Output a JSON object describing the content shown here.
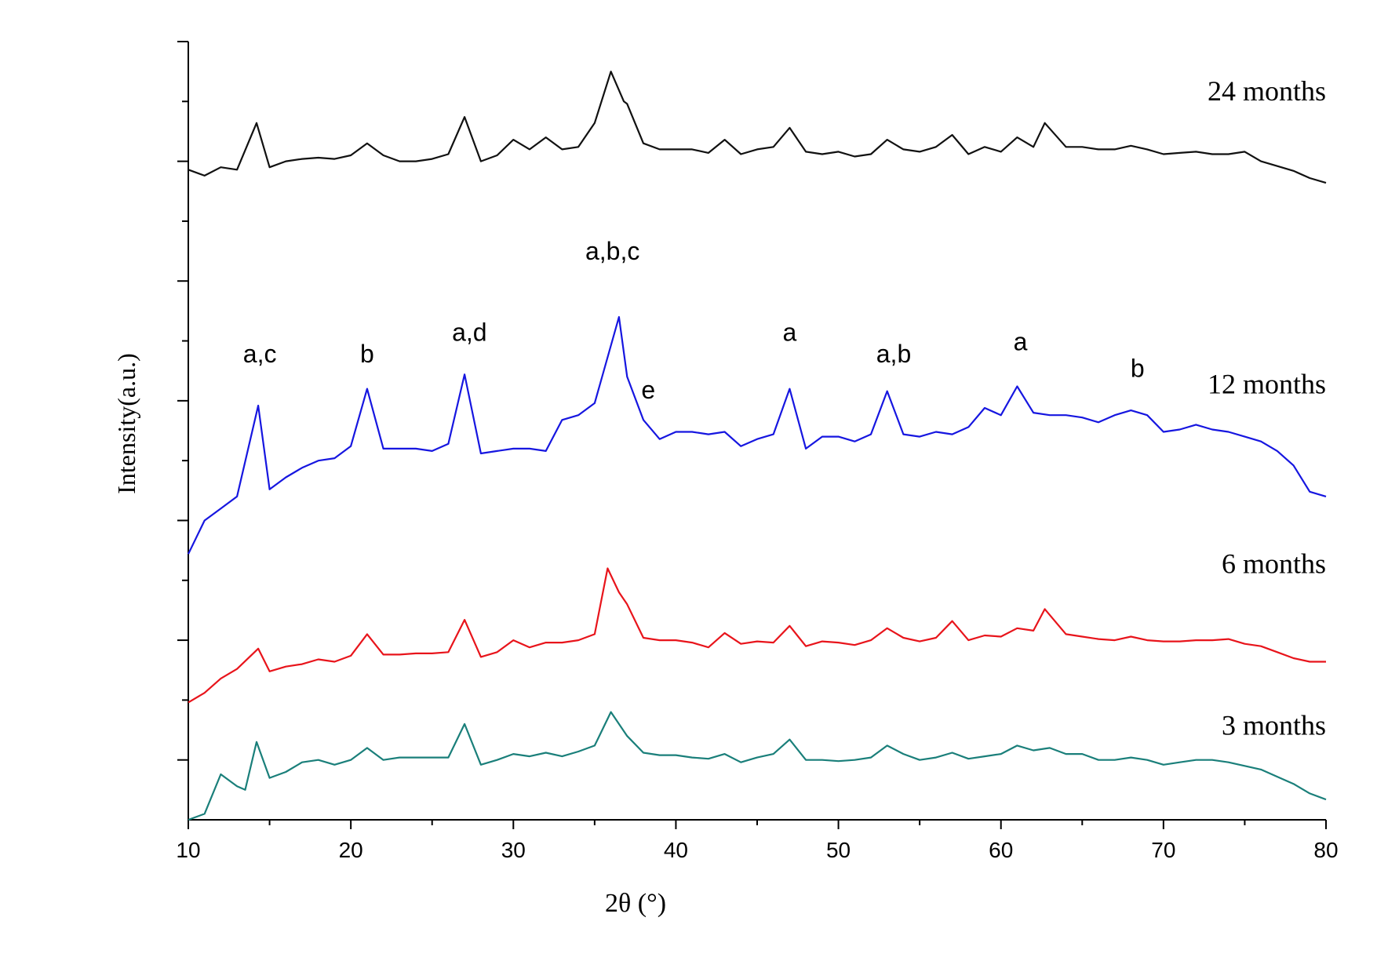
{
  "chart_data": {
    "type": "line",
    "title": "",
    "xlabel": "2θ (°)",
    "ylabel": "Intensity(a.u.)",
    "xlim": [
      10,
      80
    ],
    "x_ticks": [
      10,
      20,
      30,
      40,
      50,
      60,
      70,
      80
    ],
    "x_tick_labels": [
      "10",
      "20",
      "30",
      "40",
      "50",
      "60",
      "70",
      "80"
    ],
    "ylim": [
      0,
      6.5
    ],
    "y_ticks": [
      0.5,
      1.5,
      2.5,
      3.5,
      4.5,
      5.5,
      6.5
    ],
    "legend": "none",
    "grid": false,
    "series": [
      {
        "name": "3 months",
        "label": "3 months",
        "color": "#1a7f7a",
        "offset": 0.15,
        "points": [
          [
            10,
            0
          ],
          [
            11,
            0.05
          ],
          [
            12,
            0.38
          ],
          [
            13,
            0.28
          ],
          [
            13.5,
            0.25
          ],
          [
            14.2,
            0.65
          ],
          [
            15,
            0.35
          ],
          [
            16,
            0.4
          ],
          [
            17,
            0.48
          ],
          [
            18,
            0.5
          ],
          [
            19,
            0.46
          ],
          [
            20,
            0.5
          ],
          [
            21,
            0.6
          ],
          [
            22,
            0.5
          ],
          [
            23,
            0.52
          ],
          [
            24,
            0.52
          ],
          [
            25,
            0.52
          ],
          [
            26,
            0.52
          ],
          [
            27,
            0.8
          ],
          [
            28,
            0.46
          ],
          [
            29,
            0.5
          ],
          [
            30,
            0.55
          ],
          [
            31,
            0.53
          ],
          [
            32,
            0.56
          ],
          [
            33,
            0.53
          ],
          [
            34,
            0.57
          ],
          [
            35,
            0.62
          ],
          [
            36,
            0.9
          ],
          [
            37,
            0.7
          ],
          [
            38,
            0.56
          ],
          [
            39,
            0.54
          ],
          [
            40,
            0.54
          ],
          [
            41,
            0.52
          ],
          [
            42,
            0.51
          ],
          [
            43,
            0.55
          ],
          [
            44,
            0.48
          ],
          [
            45,
            0.52
          ],
          [
            46,
            0.55
          ],
          [
            47,
            0.67
          ],
          [
            48,
            0.5
          ],
          [
            49,
            0.5
          ],
          [
            50,
            0.49
          ],
          [
            51,
            0.5
          ],
          [
            52,
            0.52
          ],
          [
            53,
            0.62
          ],
          [
            54,
            0.55
          ],
          [
            55,
            0.5
          ],
          [
            56,
            0.52
          ],
          [
            57,
            0.56
          ],
          [
            58,
            0.51
          ],
          [
            59,
            0.53
          ],
          [
            60,
            0.55
          ],
          [
            61,
            0.62
          ],
          [
            62,
            0.58
          ],
          [
            63,
            0.6
          ],
          [
            64,
            0.55
          ],
          [
            65,
            0.55
          ],
          [
            66,
            0.5
          ],
          [
            67,
            0.5
          ],
          [
            68,
            0.52
          ],
          [
            69,
            0.5
          ],
          [
            70,
            0.46
          ],
          [
            71,
            0.48
          ],
          [
            72,
            0.5
          ],
          [
            73,
            0.5
          ],
          [
            74,
            0.48
          ],
          [
            75,
            0.45
          ],
          [
            76,
            0.42
          ],
          [
            77,
            0.36
          ],
          [
            78,
            0.3
          ],
          [
            79,
            0.22
          ],
          [
            80,
            0.17
          ]
        ]
      },
      {
        "name": "6 months",
        "label": "6 months",
        "color": "#e8141b",
        "offset": 1.5,
        "points": [
          [
            10,
            0.98
          ],
          [
            11,
            1.06
          ],
          [
            12,
            1.18
          ],
          [
            13,
            1.26
          ],
          [
            14.3,
            1.43
          ],
          [
            15,
            1.24
          ],
          [
            16,
            1.28
          ],
          [
            17,
            1.3
          ],
          [
            18,
            1.34
          ],
          [
            19,
            1.32
          ],
          [
            20,
            1.37
          ],
          [
            21,
            1.55
          ],
          [
            22,
            1.38
          ],
          [
            23,
            1.38
          ],
          [
            24,
            1.39
          ],
          [
            25,
            1.39
          ],
          [
            26,
            1.4
          ],
          [
            27,
            1.67
          ],
          [
            28,
            1.36
          ],
          [
            29,
            1.4
          ],
          [
            30,
            1.5
          ],
          [
            31,
            1.44
          ],
          [
            32,
            1.48
          ],
          [
            33,
            1.48
          ],
          [
            34,
            1.5
          ],
          [
            35,
            1.55
          ],
          [
            35.8,
            2.1
          ],
          [
            36.5,
            1.9
          ],
          [
            37,
            1.8
          ],
          [
            38,
            1.52
          ],
          [
            39,
            1.5
          ],
          [
            40,
            1.5
          ],
          [
            41,
            1.48
          ],
          [
            42,
            1.44
          ],
          [
            43,
            1.56
          ],
          [
            44,
            1.47
          ],
          [
            45,
            1.49
          ],
          [
            46,
            1.48
          ],
          [
            47,
            1.62
          ],
          [
            48,
            1.45
          ],
          [
            49,
            1.49
          ],
          [
            50,
            1.48
          ],
          [
            51,
            1.46
          ],
          [
            52,
            1.5
          ],
          [
            53,
            1.6
          ],
          [
            54,
            1.52
          ],
          [
            55,
            1.49
          ],
          [
            56,
            1.52
          ],
          [
            57,
            1.66
          ],
          [
            58,
            1.5
          ],
          [
            59,
            1.54
          ],
          [
            60,
            1.53
          ],
          [
            61,
            1.6
          ],
          [
            62,
            1.58
          ],
          [
            62.7,
            1.76
          ],
          [
            64,
            1.55
          ],
          [
            65,
            1.53
          ],
          [
            66,
            1.51
          ],
          [
            67,
            1.5
          ],
          [
            68,
            1.53
          ],
          [
            69,
            1.5
          ],
          [
            70,
            1.49
          ],
          [
            71,
            1.49
          ],
          [
            72,
            1.5
          ],
          [
            73,
            1.5
          ],
          [
            74,
            1.51
          ],
          [
            75,
            1.47
          ],
          [
            76,
            1.45
          ],
          [
            77,
            1.4
          ],
          [
            78,
            1.35
          ],
          [
            79,
            1.32
          ],
          [
            80,
            1.32
          ]
        ]
      },
      {
        "name": "12 months",
        "label": "12 months",
        "color": "#1616e0",
        "offset": 3.0,
        "points": [
          [
            10,
            2.22
          ],
          [
            11,
            2.5
          ],
          [
            12,
            2.6
          ],
          [
            13,
            2.7
          ],
          [
            14.3,
            3.46
          ],
          [
            15,
            2.76
          ],
          [
            16,
            2.86
          ],
          [
            17,
            2.94
          ],
          [
            18,
            3.0
          ],
          [
            19,
            3.02
          ],
          [
            20,
            3.12
          ],
          [
            21,
            3.6
          ],
          [
            22,
            3.1
          ],
          [
            23,
            3.1
          ],
          [
            24,
            3.1
          ],
          [
            25,
            3.08
          ],
          [
            26,
            3.14
          ],
          [
            27,
            3.72
          ],
          [
            28,
            3.06
          ],
          [
            29,
            3.08
          ],
          [
            30,
            3.1
          ],
          [
            31,
            3.1
          ],
          [
            32,
            3.08
          ],
          [
            33,
            3.34
          ],
          [
            34,
            3.38
          ],
          [
            35,
            3.48
          ],
          [
            36.5,
            4.2
          ],
          [
            37,
            3.7
          ],
          [
            38,
            3.34
          ],
          [
            39,
            3.18
          ],
          [
            40,
            3.24
          ],
          [
            41,
            3.24
          ],
          [
            42,
            3.22
          ],
          [
            43,
            3.24
          ],
          [
            44,
            3.12
          ],
          [
            45,
            3.18
          ],
          [
            46,
            3.22
          ],
          [
            47,
            3.6
          ],
          [
            48,
            3.1
          ],
          [
            49,
            3.2
          ],
          [
            50,
            3.2
          ],
          [
            51,
            3.16
          ],
          [
            52,
            3.22
          ],
          [
            53,
            3.58
          ],
          [
            54,
            3.22
          ],
          [
            55,
            3.2
          ],
          [
            56,
            3.24
          ],
          [
            57,
            3.22
          ],
          [
            58,
            3.28
          ],
          [
            59,
            3.44
          ],
          [
            60,
            3.38
          ],
          [
            61,
            3.62
          ],
          [
            62,
            3.4
          ],
          [
            63,
            3.38
          ],
          [
            64,
            3.38
          ],
          [
            65,
            3.36
          ],
          [
            66,
            3.32
          ],
          [
            67,
            3.38
          ],
          [
            68,
            3.42
          ],
          [
            69,
            3.38
          ],
          [
            70,
            3.24
          ],
          [
            71,
            3.26
          ],
          [
            72,
            3.3
          ],
          [
            73,
            3.26
          ],
          [
            74,
            3.24
          ],
          [
            75,
            3.2
          ],
          [
            76,
            3.16
          ],
          [
            77,
            3.08
          ],
          [
            78,
            2.96
          ],
          [
            79,
            2.74
          ],
          [
            80,
            2.7
          ]
        ]
      },
      {
        "name": "24 months",
        "label": "24 months",
        "color": "#111111",
        "offset": 5.45,
        "points": [
          [
            10,
            5.43
          ],
          [
            11,
            5.38
          ],
          [
            12,
            5.45
          ],
          [
            13,
            5.43
          ],
          [
            14.2,
            5.82
          ],
          [
            15,
            5.45
          ],
          [
            16,
            5.5
          ],
          [
            17,
            5.52
          ],
          [
            18,
            5.53
          ],
          [
            19,
            5.52
          ],
          [
            20,
            5.55
          ],
          [
            21,
            5.65
          ],
          [
            22,
            5.55
          ],
          [
            23,
            5.5
          ],
          [
            24,
            5.5
          ],
          [
            25,
            5.52
          ],
          [
            26,
            5.56
          ],
          [
            27,
            5.87
          ],
          [
            28,
            5.5
          ],
          [
            29,
            5.55
          ],
          [
            30,
            5.68
          ],
          [
            31,
            5.6
          ],
          [
            32,
            5.7
          ],
          [
            33,
            5.6
          ],
          [
            34,
            5.62
          ],
          [
            35,
            5.82
          ],
          [
            36,
            6.25
          ],
          [
            36.8,
            6.0
          ],
          [
            37,
            5.98
          ],
          [
            38,
            5.65
          ],
          [
            39,
            5.6
          ],
          [
            40,
            5.6
          ],
          [
            41,
            5.6
          ],
          [
            42,
            5.57
          ],
          [
            43,
            5.68
          ],
          [
            44,
            5.56
          ],
          [
            45,
            5.6
          ],
          [
            46,
            5.62
          ],
          [
            47,
            5.78
          ],
          [
            48,
            5.58
          ],
          [
            49,
            5.56
          ],
          [
            50,
            5.58
          ],
          [
            51,
            5.54
          ],
          [
            52,
            5.56
          ],
          [
            53,
            5.68
          ],
          [
            54,
            5.6
          ],
          [
            55,
            5.58
          ],
          [
            56,
            5.62
          ],
          [
            57,
            5.72
          ],
          [
            58,
            5.56
          ],
          [
            59,
            5.62
          ],
          [
            60,
            5.58
          ],
          [
            61,
            5.7
          ],
          [
            62,
            5.62
          ],
          [
            62.7,
            5.82
          ],
          [
            64,
            5.62
          ],
          [
            65,
            5.62
          ],
          [
            66,
            5.6
          ],
          [
            67,
            5.6
          ],
          [
            68,
            5.63
          ],
          [
            69,
            5.6
          ],
          [
            70,
            5.56
          ],
          [
            71,
            5.57
          ],
          [
            72,
            5.58
          ],
          [
            73,
            5.56
          ],
          [
            74,
            5.56
          ],
          [
            75,
            5.58
          ],
          [
            76,
            5.5
          ],
          [
            77,
            5.46
          ],
          [
            78,
            5.42
          ],
          [
            79,
            5.36
          ],
          [
            80,
            5.32
          ]
        ]
      }
    ],
    "annotations": [
      {
        "text": "a,c",
        "x": 14.4,
        "y": 3.82
      },
      {
        "text": "b",
        "x": 21.0,
        "y": 3.82
      },
      {
        "text": "a,d",
        "x": 27.3,
        "y": 4.0
      },
      {
        "text": "a,b,c",
        "x": 36.1,
        "y": 4.68
      },
      {
        "text": "e",
        "x": 38.3,
        "y": 3.52
      },
      {
        "text": "a",
        "x": 47.0,
        "y": 4.0
      },
      {
        "text": "a,b",
        "x": 53.4,
        "y": 3.82
      },
      {
        "text": "a",
        "x": 61.2,
        "y": 3.92
      },
      {
        "text": "b",
        "x": 68.4,
        "y": 3.7
      }
    ]
  }
}
